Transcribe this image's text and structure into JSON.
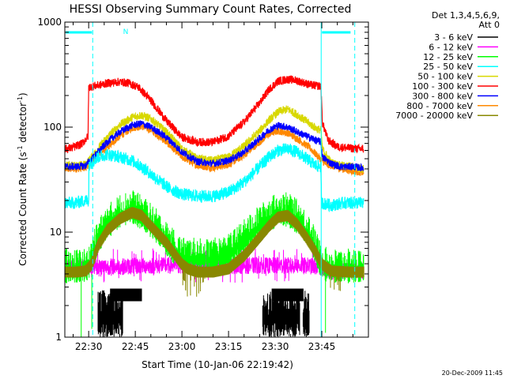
{
  "chart_data": {
    "type": "line",
    "title": "HESSI Observing Summary Count Rates, Corrected",
    "xlabel": "Start Time (10-Jan-06 22:19:42)",
    "ylabel_main": "Corrected Count Rate (s",
    "ylabel_sup1": "-1",
    "ylabel_mid": " detector",
    "ylabel_sup2": "-1",
    "ylabel_end": ")",
    "ylim": [
      1,
      1000
    ],
    "yscale": "log",
    "xlim_minutes": [
      22.33,
      55.5
    ],
    "xticks": [
      {
        "m": 30,
        "label": "22:30"
      },
      {
        "m": 45,
        "label": "22:45"
      },
      {
        "m": 60,
        "label": "23:00"
      },
      {
        "m": 75,
        "label": "23:15"
      },
      {
        "m": 90,
        "label": "23:30"
      },
      {
        "m": 105,
        "label": "23:45"
      }
    ],
    "yticks": [
      {
        "v": 1,
        "label": "1"
      },
      {
        "v": 10,
        "label": "10"
      },
      {
        "v": 100,
        "label": "100"
      },
      {
        "v": 1000,
        "label": "1000"
      }
    ],
    "legend_header": [
      "Det 1,3,4,5,6,9,",
      "Att 0"
    ],
    "legend_placement": "right",
    "timestamp": "20-Dec-2009 11:45",
    "night_marker": "N",
    "series": [
      {
        "name": "3 - 6 keV",
        "color": "#000000",
        "key": "k36"
      },
      {
        "name": "6 - 12 keV",
        "color": "#ff00ff",
        "key": "k612"
      },
      {
        "name": "12 - 25 keV",
        "color": "#00ff00",
        "key": "k1225"
      },
      {
        "name": "25 - 50 keV",
        "color": "#00ffff",
        "key": "k2550"
      },
      {
        "name": "50 - 100 keV",
        "color": "#d8d800",
        "key": "k50100"
      },
      {
        "name": "100 - 300 keV",
        "color": "#ff0000",
        "key": "k100300"
      },
      {
        "name": "300 - 800 keV",
        "color": "#0000ff",
        "key": "k300800"
      },
      {
        "name": "800 - 7000 keV",
        "color": "#ff8800",
        "key": "k8007000"
      },
      {
        "name": "7000 - 20000 keV",
        "color": "#888800",
        "key": "k700020000"
      }
    ],
    "day_intervals": [
      [
        22.33,
        31.3
      ],
      [
        104.8,
        114.5
      ]
    ],
    "saa_markers_dashed": [
      31.3,
      115.6
    ],
    "saa_markers_solid": [
      104.8
    ],
    "bands": [
      {
        "key": "k8007000",
        "points": [
          [
            22.3,
            40
          ],
          [
            26,
            40
          ],
          [
            29,
            41
          ],
          [
            31,
            48
          ],
          [
            36,
            64
          ],
          [
            40,
            82
          ],
          [
            44,
            98
          ],
          [
            47,
            102
          ],
          [
            50,
            94
          ],
          [
            55,
            72
          ],
          [
            60,
            52
          ],
          [
            65,
            43
          ],
          [
            70,
            41
          ],
          [
            75,
            44
          ],
          [
            80,
            54
          ],
          [
            85,
            72
          ],
          [
            88,
            86
          ],
          [
            91,
            92
          ],
          [
            94,
            88
          ],
          [
            97,
            78
          ],
          [
            101,
            64
          ],
          [
            104,
            52
          ],
          [
            106,
            45
          ],
          [
            110,
            41
          ],
          [
            115,
            38
          ],
          [
            118,
            37
          ]
        ]
      },
      {
        "key": "k50100",
        "points": [
          [
            22.3,
            43
          ],
          [
            26,
            43
          ],
          [
            29,
            44
          ],
          [
            31,
            52
          ],
          [
            36,
            80
          ],
          [
            40,
            105
          ],
          [
            44,
            124
          ],
          [
            47,
            130
          ],
          [
            50,
            120
          ],
          [
            55,
            90
          ],
          [
            60,
            62
          ],
          [
            65,
            50
          ],
          [
            70,
            48
          ],
          [
            75,
            52
          ],
          [
            80,
            66
          ],
          [
            85,
            92
          ],
          [
            88,
            116
          ],
          [
            91,
            140
          ],
          [
            94,
            148
          ],
          [
            97,
            132
          ],
          [
            101,
            108
          ],
          [
            103.5,
            96
          ],
          [
            104.7,
            94
          ],
          [
            105.2,
            62
          ],
          [
            108,
            46
          ],
          [
            111,
            43
          ],
          [
            115,
            42
          ],
          [
            118,
            40
          ]
        ]
      },
      {
        "key": "k300800",
        "points": [
          [
            22.3,
            42
          ],
          [
            26,
            42
          ],
          [
            29,
            43
          ],
          [
            31,
            50
          ],
          [
            36,
            72
          ],
          [
            40,
            90
          ],
          [
            44,
            104
          ],
          [
            47,
            108
          ],
          [
            50,
            100
          ],
          [
            55,
            80
          ],
          [
            60,
            58
          ],
          [
            65,
            47
          ],
          [
            70,
            45
          ],
          [
            75,
            48
          ],
          [
            80,
            58
          ],
          [
            85,
            78
          ],
          [
            88,
            94
          ],
          [
            91,
            104
          ],
          [
            94,
            100
          ],
          [
            97,
            90
          ],
          [
            101,
            80
          ],
          [
            103.5,
            74
          ],
          [
            104.7,
            72
          ],
          [
            105.2,
            52
          ],
          [
            108,
            45
          ],
          [
            111,
            42
          ],
          [
            115,
            42
          ],
          [
            118,
            41
          ]
        ]
      },
      {
        "key": "k100300",
        "points": [
          [
            22.3,
            62
          ],
          [
            25,
            64
          ],
          [
            28,
            70
          ],
          [
            29.8,
            82
          ],
          [
            30.0,
            240
          ],
          [
            33,
            250
          ],
          [
            36,
            262
          ],
          [
            40,
            270
          ],
          [
            43,
            262
          ],
          [
            46,
            240
          ],
          [
            50,
            180
          ],
          [
            55,
            115
          ],
          [
            60,
            80
          ],
          [
            65,
            72
          ],
          [
            70,
            72
          ],
          [
            75,
            82
          ],
          [
            80,
            112
          ],
          [
            85,
            170
          ],
          [
            88,
            228
          ],
          [
            91,
            275
          ],
          [
            94,
            285
          ],
          [
            97,
            278
          ],
          [
            100,
            260
          ],
          [
            102,
            250
          ],
          [
            104.7,
            245
          ],
          [
            105.2,
            110
          ],
          [
            107,
            75
          ],
          [
            110,
            65
          ],
          [
            114,
            63
          ],
          [
            118,
            62
          ]
        ]
      },
      {
        "key": "k2550",
        "points": [
          [
            22.3,
            19
          ],
          [
            26,
            19
          ],
          [
            29,
            20
          ],
          [
            30.0,
            20
          ],
          [
            30.1,
            44
          ],
          [
            33,
            52
          ],
          [
            36,
            55
          ],
          [
            40,
            52
          ],
          [
            44,
            48
          ],
          [
            48,
            40
          ],
          [
            52,
            32
          ],
          [
            56,
            26
          ],
          [
            60,
            23
          ],
          [
            65,
            22
          ],
          [
            70,
            22
          ],
          [
            75,
            24
          ],
          [
            80,
            30
          ],
          [
            85,
            42
          ],
          [
            88,
            52
          ],
          [
            91,
            60
          ],
          [
            94,
            62
          ],
          [
            97,
            58
          ],
          [
            101,
            48
          ],
          [
            103,
            43
          ],
          [
            104.7,
            42
          ],
          [
            104.9,
            19
          ],
          [
            108,
            18
          ],
          [
            112,
            19
          ],
          [
            118,
            19
          ]
        ]
      },
      {
        "key": "k1225",
        "points": [
          [
            22.3,
            4.2
          ],
          [
            26,
            4.2
          ],
          [
            29.5,
            4.3
          ],
          [
            30,
            4.5
          ],
          [
            33,
            8
          ],
          [
            36,
            11
          ],
          [
            40,
            14
          ],
          [
            44,
            15.5
          ],
          [
            48,
            13
          ],
          [
            52,
            10
          ],
          [
            56,
            7
          ],
          [
            60,
            5.5
          ],
          [
            65,
            5.3
          ],
          [
            70,
            5.3
          ],
          [
            75,
            5.8
          ],
          [
            80,
            8
          ],
          [
            85,
            11
          ],
          [
            88,
            13
          ],
          [
            91,
            14.5
          ],
          [
            94,
            14.5
          ],
          [
            97,
            12.5
          ],
          [
            101,
            9
          ],
          [
            103,
            6.5
          ],
          [
            105,
            4.5
          ],
          [
            108,
            4.2
          ],
          [
            114,
            4.2
          ],
          [
            118,
            4.2
          ]
        ]
      },
      {
        "key": "k700020000",
        "points": [
          [
            22.3,
            4.2
          ],
          [
            26,
            4.2
          ],
          [
            29,
            4.3
          ],
          [
            31,
            5.0
          ],
          [
            33,
            7.5
          ],
          [
            36,
            10.5
          ],
          [
            40,
            13.5
          ],
          [
            44,
            15.5
          ],
          [
            47,
            14.5
          ],
          [
            50,
            11.5
          ],
          [
            55,
            8
          ],
          [
            58,
            6
          ],
          [
            60,
            5
          ],
          [
            62,
            4.5
          ],
          [
            65,
            4.2
          ],
          [
            70,
            4.2
          ],
          [
            75,
            4.5
          ],
          [
            80,
            6
          ],
          [
            85,
            9
          ],
          [
            88,
            11.5
          ],
          [
            91,
            14
          ],
          [
            94,
            14.5
          ],
          [
            97,
            12
          ],
          [
            100,
            9
          ],
          [
            103,
            6.5
          ],
          [
            105,
            5
          ],
          [
            108,
            4.3
          ],
          [
            114,
            4.2
          ],
          [
            118,
            4.2
          ]
        ]
      },
      {
        "key": "k612",
        "points": [
          [
            22.3,
            4.6
          ],
          [
            28,
            4.6
          ],
          [
            31,
            4.7
          ],
          [
            40,
            4.7
          ],
          [
            50,
            4.8
          ],
          [
            60,
            4.8
          ],
          [
            70,
            4.8
          ],
          [
            80,
            4.8
          ],
          [
            90,
            4.8
          ],
          [
            100,
            4.8
          ],
          [
            105,
            4.6
          ],
          [
            109,
            4.2
          ],
          [
            114,
            4.3
          ],
          [
            118,
            4.3
          ]
        ]
      }
    ]
  }
}
